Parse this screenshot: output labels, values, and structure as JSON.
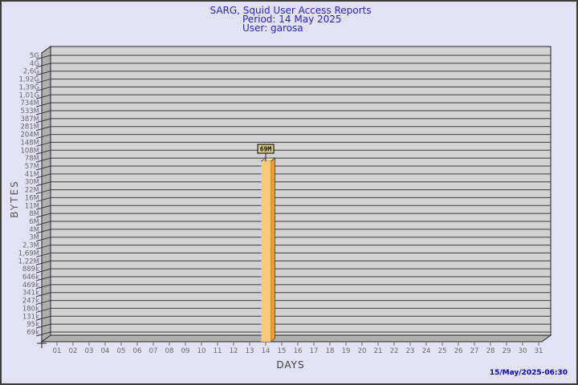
{
  "header": {
    "title": "SARG, Squid User Access Reports",
    "period": "Period: 14 May 2025",
    "user": "User: garosa"
  },
  "footer": {
    "timestamp": "15/May/2025-06:30"
  },
  "chart_data": {
    "type": "bar",
    "title": "SARG, Squid User Access Reports",
    "subtitle": [
      "Period: 14 May 2025",
      "User: garosa"
    ],
    "xlabel": "DAYS",
    "ylabel": "BYTES",
    "x_ticks": [
      "01",
      "02",
      "03",
      "04",
      "05",
      "06",
      "07",
      "08",
      "09",
      "10",
      "11",
      "12",
      "13",
      "14",
      "15",
      "16",
      "17",
      "18",
      "19",
      "20",
      "21",
      "22",
      "23",
      "24",
      "25",
      "26",
      "27",
      "28",
      "29",
      "30",
      "31"
    ],
    "y_ticks": [
      "5G",
      "4G",
      "2,6G",
      "1,92G",
      "1,39G",
      "1,01G",
      "734M",
      "533M",
      "387M",
      "281M",
      "204M",
      "148M",
      "108M",
      "78M",
      "57M",
      "41M",
      "30M",
      "22M",
      "16M",
      "11M",
      "8M",
      "6M",
      "4M",
      "3M",
      "2,3M",
      "1,69M",
      "1,22M",
      "889k",
      "646k",
      "469k",
      "341k",
      "247k",
      "180k",
      "131k",
      "95k",
      "69k"
    ],
    "y_scale": "log",
    "ylim_bytes": [
      69000,
      5000000000
    ],
    "bars": [
      {
        "day": "14",
        "label": "69M",
        "bytes": 69000000
      }
    ],
    "grid": "horizontal-lines",
    "legend": "none"
  },
  "colors": {
    "background": "#e2e2f4",
    "border": "#3c3c3c",
    "header_text": "#2626bf",
    "timestamp_text": "#0000cc",
    "grid_bg": "#d2d2d2",
    "wall": "#b0b0b0",
    "grid_line": "#3a3a3a",
    "outline": "#222222",
    "tick_text": "#686868",
    "bar_front": "#fac878",
    "bar_side": "#e8a030",
    "bar_top": "#ffe0a0",
    "flag_bg": "#d4cc82",
    "flag_text": "#111111"
  }
}
